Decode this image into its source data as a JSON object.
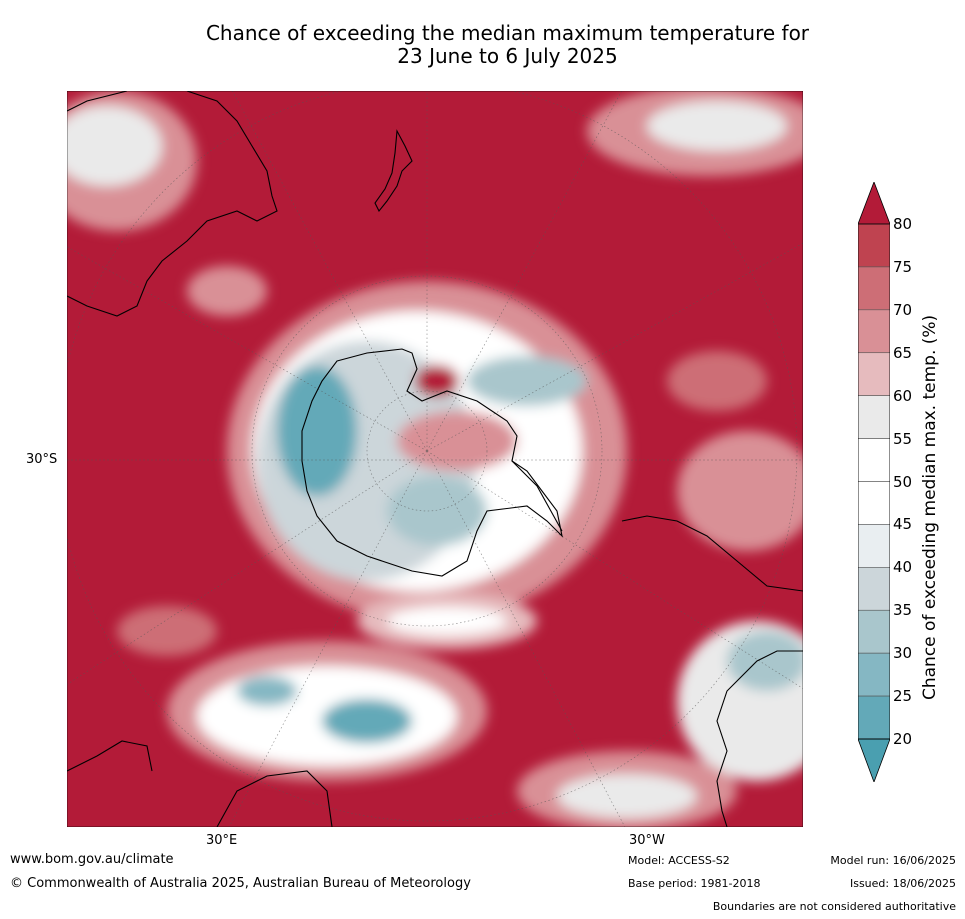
{
  "title_line1": "Chance of exceeding the median maximum temperature for",
  "title_line2": "23 June to 6 July 2025",
  "map": {
    "lat_label": "30°S",
    "lon_labels": {
      "east": "30°E",
      "west": "30°W"
    },
    "colors": {
      "ocean_warm": "#b31b38",
      "neutral": "#ffffff",
      "cool": "#5ba6b6"
    }
  },
  "colorbar": {
    "title": "Chance of exceeding median max. temp. (%)",
    "ticks": [
      "80",
      "75",
      "70",
      "65",
      "60",
      "55",
      "50",
      "45",
      "40",
      "35",
      "30",
      "25",
      "20"
    ],
    "colors": [
      "#b31b38",
      "#bf4350",
      "#cd6e76",
      "#d99096",
      "#e6bbbe",
      "#eaeaea",
      "#ffffff",
      "#ffffff",
      "#e9eef1",
      "#ccd6da",
      "#a9c6cc",
      "#85b7c3",
      "#63a9b8",
      "#4a9fb0"
    ]
  },
  "footer": {
    "website": "www.bom.gov.au/climate",
    "copyright": "© Commonwealth of Australia 2025, Australian Bureau of Meteorology",
    "model": "Model: ACCESS-S2",
    "base_period": "Base period: 1981-2018",
    "model_run": "Model run: 16/06/2025",
    "issued": "Issued: 18/06/2025",
    "disclaimer": "Boundaries are not considered authoritative"
  }
}
